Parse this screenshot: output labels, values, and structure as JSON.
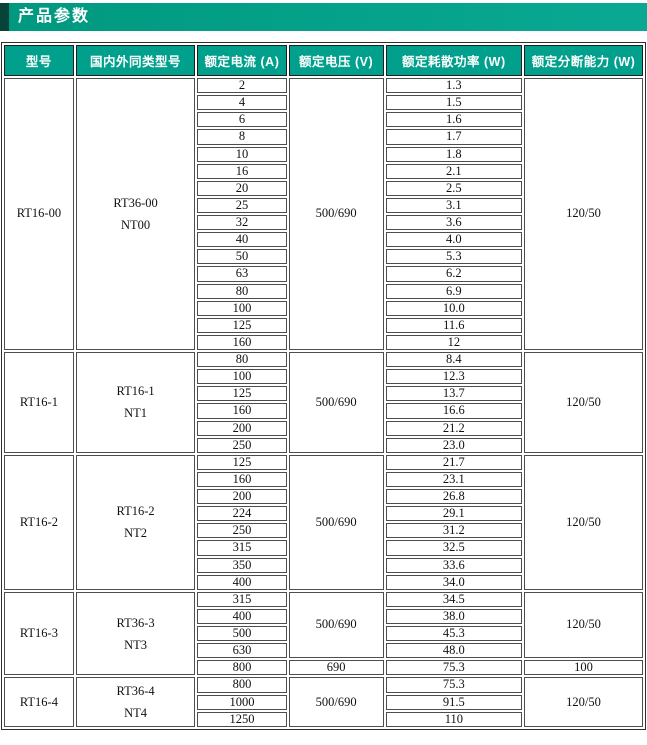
{
  "header": {
    "title": "产品参数"
  },
  "colors": {
    "accent_teal": "#00a08c",
    "accent_dark": "#06443a",
    "header_text": "#ffffff",
    "cell_border": "#4d4d4d"
  },
  "table": {
    "columns": [
      "型号",
      "国内外同类型号",
      "额定电流 (A)",
      "额定电压 (V)",
      "额定耗散功率 (W)",
      "额定分断能力 (W)"
    ],
    "groups": [
      {
        "model": "RT16-00",
        "similar": [
          "RT36-00",
          "NT00"
        ],
        "subgroups": [
          {
            "voltage": "500/690",
            "breaking": "120/50",
            "rows": [
              {
                "current": "2",
                "power": "1.3"
              },
              {
                "current": "4",
                "power": "1.5"
              },
              {
                "current": "6",
                "power": "1.6"
              },
              {
                "current": "8",
                "power": "1.7"
              },
              {
                "current": "10",
                "power": "1.8"
              },
              {
                "current": "16",
                "power": "2.1"
              },
              {
                "current": "20",
                "power": "2.5"
              },
              {
                "current": "25",
                "power": "3.1"
              },
              {
                "current": "32",
                "power": "3.6"
              },
              {
                "current": "40",
                "power": "4.0"
              },
              {
                "current": "50",
                "power": "5.3"
              },
              {
                "current": "63",
                "power": "6.2"
              },
              {
                "current": "80",
                "power": "6.9"
              },
              {
                "current": "100",
                "power": "10.0"
              },
              {
                "current": "125",
                "power": "11.6"
              },
              {
                "current": "160",
                "power": "12"
              }
            ]
          }
        ]
      },
      {
        "model": "RT16-1",
        "similar": [
          "RT16-1",
          "NT1"
        ],
        "subgroups": [
          {
            "voltage": "500/690",
            "breaking": "120/50",
            "rows": [
              {
                "current": "80",
                "power": "8.4"
              },
              {
                "current": "100",
                "power": "12.3"
              },
              {
                "current": "125",
                "power": "13.7"
              },
              {
                "current": "160",
                "power": "16.6"
              },
              {
                "current": "200",
                "power": "21.2"
              },
              {
                "current": "250",
                "power": "23.0"
              }
            ]
          }
        ]
      },
      {
        "model": "RT16-2",
        "similar": [
          "RT16-2",
          "NT2"
        ],
        "subgroups": [
          {
            "voltage": "500/690",
            "breaking": "120/50",
            "rows": [
              {
                "current": "125",
                "power": "21.7"
              },
              {
                "current": "160",
                "power": "23.1"
              },
              {
                "current": "200",
                "power": "26.8"
              },
              {
                "current": "224",
                "power": "29.1"
              },
              {
                "current": "250",
                "power": "31.2"
              },
              {
                "current": "315",
                "power": "32.5"
              },
              {
                "current": "350",
                "power": "33.6"
              },
              {
                "current": "400",
                "power": "34.0"
              }
            ]
          }
        ]
      },
      {
        "model": "RT16-3",
        "similar": [
          "RT36-3",
          "NT3"
        ],
        "subgroups": [
          {
            "voltage": "500/690",
            "breaking": "120/50",
            "rows": [
              {
                "current": "315",
                "power": "34.5"
              },
              {
                "current": "400",
                "power": "38.0"
              },
              {
                "current": "500",
                "power": "45.3"
              },
              {
                "current": "630",
                "power": "48.0"
              }
            ]
          },
          {
            "voltage": "690",
            "breaking": "100",
            "rows": [
              {
                "current": "800",
                "power": "75.3"
              }
            ]
          }
        ]
      },
      {
        "model": "RT16-4",
        "similar": [
          "RT36-4",
          "NT4"
        ],
        "subgroups": [
          {
            "voltage": "500/690",
            "breaking": "120/50",
            "rows": [
              {
                "current": "800",
                "power": "75.3"
              },
              {
                "current": "1000",
                "power": "91.5"
              },
              {
                "current": "1250",
                "power": "110"
              }
            ]
          }
        ]
      }
    ]
  }
}
